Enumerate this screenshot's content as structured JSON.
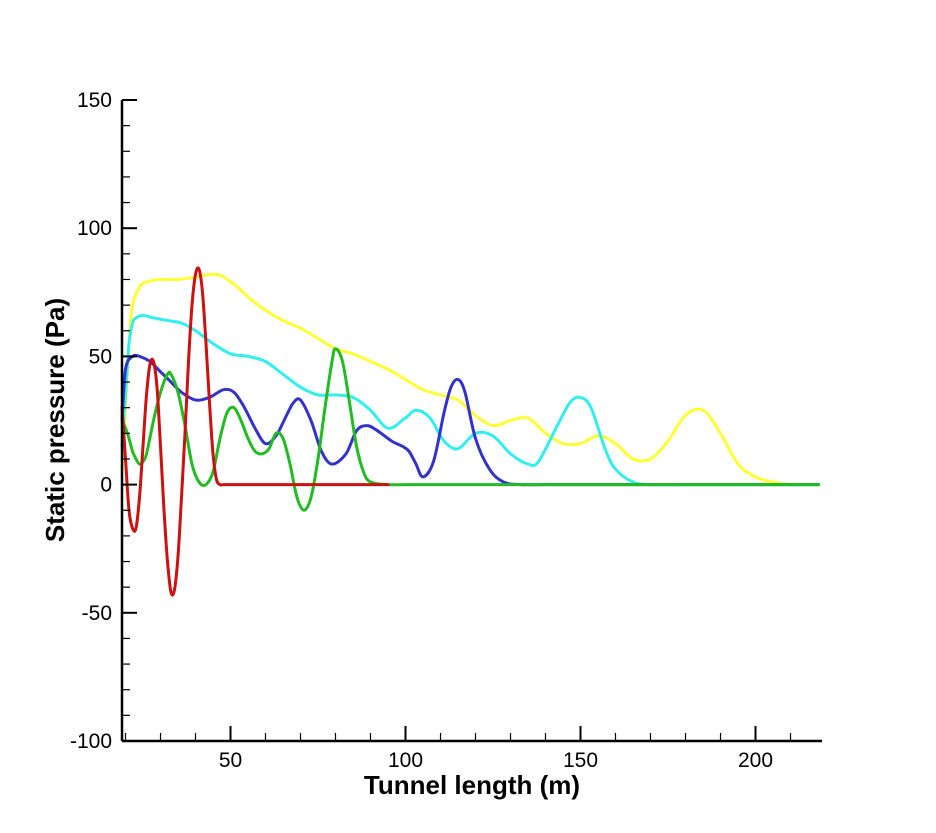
{
  "chart_data": {
    "type": "line",
    "title": "",
    "xlabel": "Tunnel length (m)",
    "ylabel": "Static pressure (Pa)",
    "xlim": [
      19,
      219
    ],
    "ylim": [
      -100,
      150
    ],
    "xticks": [
      50,
      100,
      150,
      200
    ],
    "yticks": [
      -100,
      -50,
      0,
      50,
      100,
      150
    ],
    "grid": false,
    "legend": "none",
    "series": [
      {
        "name": "yellow",
        "color": "#ffff33",
        "x": [
          19,
          20,
          21,
          22,
          24,
          26,
          30,
          35,
          40,
          45,
          48,
          52,
          56,
          60,
          65,
          70,
          75,
          80,
          85,
          90,
          95,
          100,
          105,
          110,
          115,
          120,
          125,
          130,
          135,
          140,
          145,
          150,
          155,
          160,
          165,
          170,
          175,
          180,
          185,
          190,
          195,
          200,
          205,
          210,
          215,
          218
        ],
        "y": [
          5,
          30,
          55,
          70,
          77,
          79,
          80,
          80,
          81,
          82,
          81,
          77,
          72,
          68,
          64,
          61,
          57,
          53,
          51,
          48,
          45,
          41,
          37,
          35,
          33,
          27,
          23,
          25,
          26,
          20,
          16,
          16,
          19,
          16,
          10,
          10,
          17,
          27,
          29,
          20,
          8,
          3,
          1,
          0,
          0,
          0
        ]
      },
      {
        "name": "cyan",
        "color": "#33eeee",
        "x": [
          19,
          20,
          21,
          22,
          23,
          25,
          28,
          32,
          36,
          40,
          45,
          50,
          55,
          60,
          65,
          70,
          75,
          80,
          85,
          90,
          95,
          100,
          103,
          107,
          111,
          115,
          120,
          125,
          130,
          135,
          138,
          143,
          147,
          150,
          153,
          157,
          160,
          165,
          170,
          180,
          190,
          200,
          210,
          218
        ],
        "y": [
          15,
          35,
          55,
          63,
          65,
          66,
          65,
          64,
          63,
          60,
          55,
          51,
          50,
          48,
          43,
          38,
          35,
          35,
          34,
          29,
          22,
          26,
          29,
          26,
          17,
          14,
          20,
          19,
          12,
          8,
          9,
          22,
          32,
          34,
          30,
          14,
          6,
          1,
          0,
          0,
          0,
          0,
          0,
          0
        ]
      },
      {
        "name": "blue",
        "color": "#3333cc",
        "x": [
          19,
          20,
          22,
          24,
          27,
          30,
          33,
          36,
          40,
          44,
          48,
          51,
          54,
          57,
          60,
          63,
          66,
          68,
          70,
          73,
          76,
          79,
          83,
          86,
          89,
          92,
          96,
          99,
          101,
          103,
          105,
          108,
          111,
          113,
          115,
          117,
          120,
          124,
          128,
          133,
          140,
          150,
          160,
          170,
          180,
          218
        ],
        "y": [
          25,
          45,
          50,
          50,
          48,
          44,
          40,
          36,
          33,
          34,
          37,
          36,
          30,
          22,
          16,
          19,
          27,
          32,
          33,
          25,
          13,
          8,
          12,
          21,
          23,
          21,
          17,
          15,
          13,
          8,
          3,
          9,
          28,
          38,
          41,
          36,
          18,
          6,
          1,
          0,
          0,
          0,
          0,
          0,
          0,
          0
        ]
      },
      {
        "name": "green",
        "color": "#22bb22",
        "x": [
          19,
          20,
          21,
          22,
          23,
          24,
          25,
          26,
          28,
          30,
          32,
          33,
          35,
          37,
          39,
          41,
          43,
          45,
          47,
          49,
          51,
          53,
          55,
          57,
          59,
          61,
          63,
          65,
          67,
          69,
          71,
          73,
          75,
          77,
          79,
          80,
          82,
          84,
          86,
          88,
          90,
          95,
          100,
          110,
          130,
          218
        ],
        "y": [
          25,
          22,
          18,
          13,
          10,
          8,
          9,
          12,
          25,
          36,
          43,
          43,
          36,
          23,
          8,
          1,
          0,
          5,
          18,
          28,
          30,
          25,
          18,
          13,
          12,
          14,
          20,
          18,
          8,
          -5,
          -10,
          -5,
          10,
          30,
          48,
          53,
          48,
          32,
          15,
          5,
          1,
          0,
          0,
          0,
          0,
          0
        ]
      },
      {
        "name": "red",
        "color": "#cc1111",
        "x": [
          19,
          20,
          21,
          22,
          23,
          24,
          25,
          26,
          27,
          28,
          29,
          30,
          31,
          32,
          33,
          34,
          35,
          36,
          37,
          38,
          39,
          40,
          41,
          42,
          43,
          44,
          45,
          46,
          47,
          48,
          49,
          50,
          51,
          52,
          53,
          54,
          55,
          57,
          60,
          70,
          80,
          95
        ],
        "y": [
          30,
          10,
          -10,
          -17,
          -17,
          -5,
          15,
          35,
          47,
          48,
          38,
          15,
          -10,
          -30,
          -42,
          -41,
          -28,
          -5,
          20,
          48,
          70,
          82,
          84,
          75,
          55,
          32,
          12,
          2,
          0,
          0,
          0,
          0,
          0,
          0,
          0,
          0,
          0,
          0,
          0,
          0,
          0,
          0
        ]
      }
    ]
  }
}
